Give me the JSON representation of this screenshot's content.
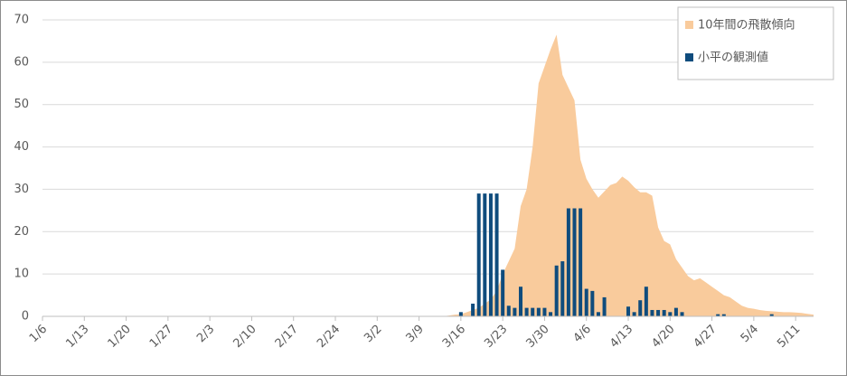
{
  "chart_data": {
    "type": "combo",
    "categories": [
      "1/6",
      null,
      null,
      null,
      null,
      null,
      null,
      "1/13",
      null,
      null,
      null,
      null,
      null,
      null,
      "1/20",
      null,
      null,
      null,
      null,
      null,
      null,
      "1/27",
      null,
      null,
      null,
      null,
      null,
      null,
      "2/3",
      null,
      null,
      null,
      null,
      null,
      null,
      "2/10",
      null,
      null,
      null,
      null,
      null,
      null,
      "2/17",
      null,
      null,
      null,
      null,
      null,
      null,
      "2/24",
      null,
      null,
      null,
      null,
      null,
      null,
      "3/2",
      null,
      null,
      null,
      null,
      null,
      null,
      "3/9",
      null,
      null,
      null,
      null,
      null,
      null,
      "3/16",
      null,
      null,
      null,
      null,
      null,
      null,
      "3/23",
      null,
      null,
      null,
      null,
      null,
      null,
      "3/30",
      null,
      null,
      null,
      null,
      null,
      null,
      "4/6",
      null,
      null,
      null,
      null,
      null,
      null,
      "4/13",
      null,
      null,
      null,
      null,
      null,
      null,
      "4/20",
      null,
      null,
      null,
      null,
      null,
      null,
      "4/27",
      null,
      null,
      null,
      null,
      null,
      null,
      "5/4",
      null,
      null,
      null,
      null,
      null,
      null,
      "5/11",
      null,
      null,
      null
    ],
    "series": [
      {
        "name": "10年間の飛散傾向",
        "type": "area",
        "color": "#f9cb9c",
        "values": [
          0,
          0,
          0,
          0,
          0,
          0,
          0,
          0,
          0,
          0,
          0,
          0,
          0,
          0,
          0,
          0,
          0,
          0,
          0,
          0,
          0,
          0,
          0,
          0,
          0,
          0,
          0,
          0,
          0,
          0,
          0,
          0,
          0,
          0,
          0,
          0,
          0,
          0,
          0,
          0,
          0,
          0,
          0,
          0,
          0,
          0,
          0,
          0,
          0,
          0,
          0,
          0,
          0,
          0,
          0,
          0,
          0,
          0,
          0,
          0,
          0,
          0,
          0,
          0,
          0,
          0,
          0,
          0,
          0.2,
          0.4,
          0.5,
          1,
          1.5,
          2,
          3,
          4,
          6,
          10,
          13,
          16,
          26,
          30,
          40,
          55,
          59,
          63,
          66.5,
          57,
          54,
          51,
          37,
          32.5,
          30,
          28,
          29.5,
          31,
          31.5,
          33,
          32,
          30.5,
          29.3,
          29.3,
          28.5,
          21,
          17.8,
          17,
          13.5,
          11.5,
          9.5,
          8.5,
          9,
          8,
          7,
          6,
          5,
          4.5,
          3.5,
          2.5,
          2,
          1.8,
          1.5,
          1.3,
          1.2,
          1.1,
          1,
          1,
          0.9,
          0.8,
          0.6,
          0.4
        ]
      },
      {
        "name": "小平の観測値",
        "type": "bar",
        "color": "#0f4c7d",
        "values": [
          0,
          0,
          0,
          0,
          0,
          0,
          0,
          0,
          0,
          0,
          0,
          0,
          0,
          0,
          0,
          0,
          0,
          0,
          0,
          0,
          0,
          0,
          0,
          0,
          0,
          0,
          0,
          0,
          0,
          0,
          0,
          0,
          0,
          0,
          0,
          0,
          0,
          0,
          0,
          0,
          0,
          0,
          0,
          0,
          0,
          0,
          0,
          0,
          0,
          0,
          0,
          0,
          0,
          0,
          0,
          0,
          0,
          0,
          0,
          0,
          0,
          0,
          0,
          0,
          0,
          0,
          0,
          0,
          0,
          0,
          1,
          0,
          3,
          29,
          29,
          29,
          29,
          11,
          2.5,
          2,
          7,
          2,
          2,
          2,
          2,
          1,
          12,
          13,
          25.5,
          25.5,
          25.5,
          6.5,
          6,
          1,
          4.5,
          0,
          0,
          0,
          2.3,
          1,
          3.8,
          7,
          1.5,
          1.5,
          1.5,
          1,
          2,
          1,
          0,
          0,
          0,
          0,
          0,
          0.5,
          0.5,
          0,
          0,
          0,
          0,
          0,
          0,
          0,
          0.5,
          0,
          0,
          0,
          0,
          0,
          0,
          0
        ]
      }
    ],
    "ylim": [
      0,
      70
    ],
    "yticks": [
      0,
      10,
      20,
      30,
      40,
      50,
      60,
      70
    ],
    "grid": true,
    "legend": "top-right"
  }
}
